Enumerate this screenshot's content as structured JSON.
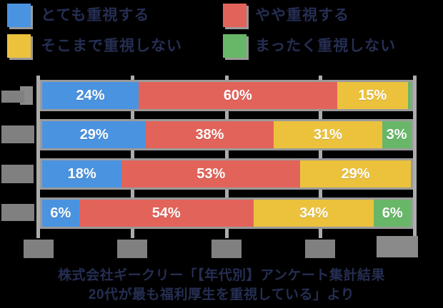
{
  "colors": {
    "blue": "#4a93e0",
    "red": "#e2635a",
    "yellow": "#ecc23d",
    "green": "#68b768",
    "navy_text": "#252e52",
    "redacted_grey": "#808080",
    "gridline_grey": "#acacac",
    "bar_outline_grey": "#9a9a9a",
    "value_label_white": "#ffffff",
    "background": "#000000"
  },
  "legend": {
    "items": [
      {
        "label": "とても重視する",
        "color_key": "blue"
      },
      {
        "label": "やや重視する",
        "color_key": "red"
      },
      {
        "label": "そこまで重視しない",
        "color_key": "yellow"
      },
      {
        "label": "まったく重視しない",
        "color_key": "green"
      }
    ]
  },
  "chart_data": {
    "type": "bar",
    "orientation": "horizontal",
    "stacked": true,
    "title": "",
    "categories": [
      "[redacted]",
      "[redacted]",
      "[redacted]",
      "[redacted]"
    ],
    "y_axis": {
      "labels_redacted": true
    },
    "x_axis": {
      "min": 0,
      "max": 100,
      "tick_values": [
        0,
        25,
        50,
        75,
        100
      ],
      "tick_labels_redacted": true,
      "unit": "%"
    },
    "grid": true,
    "legend_position": "top",
    "series": [
      {
        "name": "とても重視する",
        "color": "#4a93e0",
        "values": [
          24,
          29,
          18,
          6
        ]
      },
      {
        "name": "やや重視する",
        "color": "#e2635a",
        "values": [
          60,
          38,
          53,
          54
        ]
      },
      {
        "name": "そこまで重視しない",
        "color": "#ecc23d",
        "values": [
          15,
          31,
          29,
          34
        ]
      },
      {
        "name": "まったく重視しない",
        "color": "#68b768",
        "values": [
          1,
          3,
          0,
          6
        ]
      }
    ]
  },
  "rows": [
    {
      "segments": [
        {
          "color": "blue",
          "value": 24,
          "label": "24%"
        },
        {
          "color": "red",
          "value": 60,
          "label": "60%"
        },
        {
          "color": "yellow",
          "value": 15,
          "label": "15%"
        },
        {
          "color": "green",
          "value": 1,
          "label": ""
        }
      ]
    },
    {
      "segments": [
        {
          "color": "blue",
          "value": 29,
          "label": "29%"
        },
        {
          "color": "red",
          "value": 38,
          "label": "38%"
        },
        {
          "color": "yellow",
          "value": 31,
          "label": "31%"
        },
        {
          "color": "green",
          "value": 3,
          "label": "3%"
        }
      ]
    },
    {
      "segments": [
        {
          "color": "blue",
          "value": 18,
          "label": "18%"
        },
        {
          "color": "red",
          "value": 53,
          "label": "53%"
        },
        {
          "color": "yellow",
          "value": 29,
          "label": "29%"
        },
        {
          "color": "green",
          "value": 0,
          "label": ""
        }
      ]
    },
    {
      "segments": [
        {
          "color": "blue",
          "value": 6,
          "label": "6%"
        },
        {
          "color": "red",
          "value": 54,
          "label": "54%"
        },
        {
          "color": "yellow",
          "value": 34,
          "label": "34%"
        },
        {
          "color": "green",
          "value": 6,
          "label": "6%"
        }
      ]
    }
  ],
  "caption": {
    "line1": "株式会社ギークリー「【年代別】アンケート集計結果",
    "line2": "20代が最も福利厚生を重視している」より"
  }
}
